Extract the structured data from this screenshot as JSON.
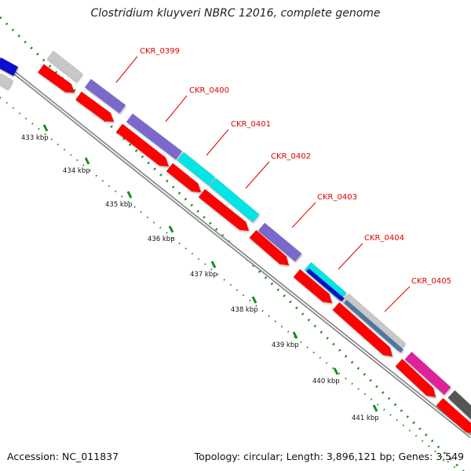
{
  "title": "Clostridium kluyveri NBRC 12016, complete genome",
  "accession": "Accession: NC_011837",
  "summary": "Topology: circular; Length: 3,896,121 bp; Genes: 3,549",
  "gene_labels": [
    "CKR_0399",
    "CKR_0400",
    "CKR_0401",
    "CKR_0402",
    "CKR_0403",
    "CKR_0404",
    "CKR_0405"
  ],
  "kbp_labels": [
    "433 kbp",
    "434 kbp",
    "435 kbp",
    "436 kbp",
    "437 kbp",
    "438 kbp",
    "439 kbp",
    "440 kbp",
    "441 kbp"
  ],
  "colors": {
    "label_red": "#dd0000",
    "tick_green": "#1a8a1a",
    "backbone_gray": "#8a8a8a",
    "red_gene": "#ff0000",
    "purple_gene": "#7b68cc",
    "cyan_gene": "#00e5e5",
    "blue_gene": "#1010cc",
    "gray_gene": "#c8c8c8",
    "steel_gene": "#4a78a8",
    "magenta_gene": "#e0209a",
    "dark_gray_gene": "#555555"
  }
}
